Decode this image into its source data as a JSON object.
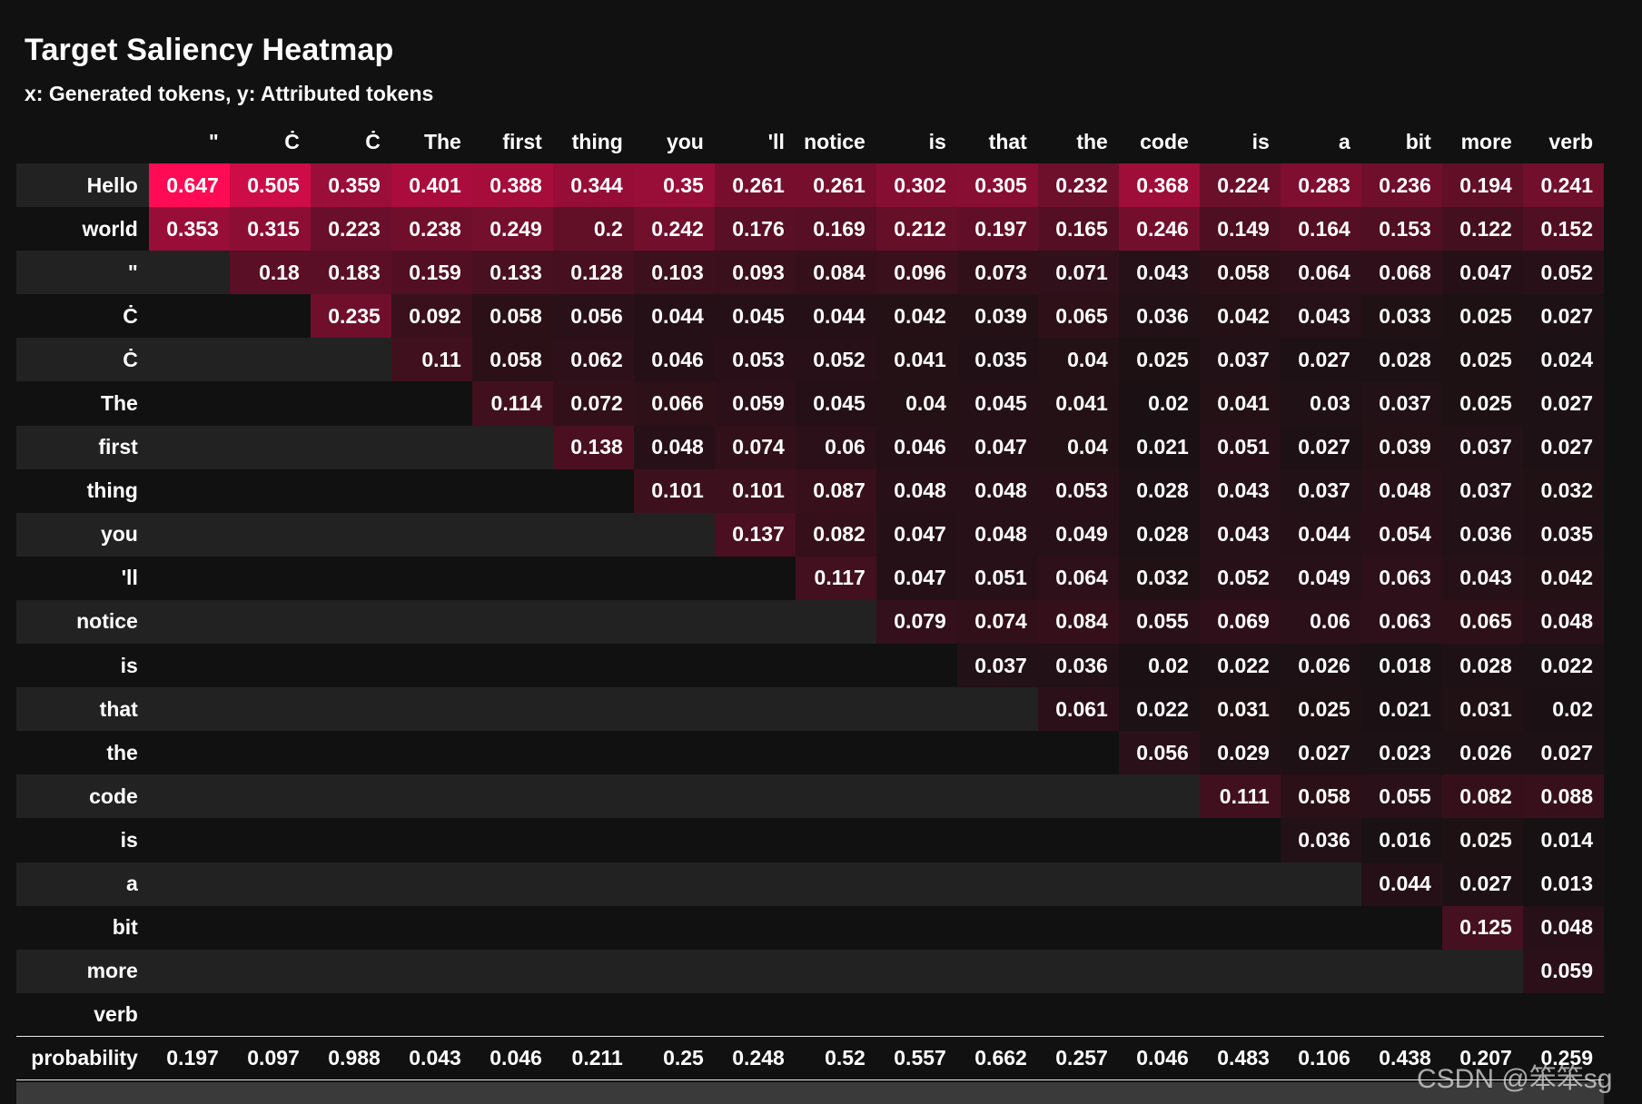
{
  "chart_data": {
    "type": "heatmap",
    "title": "Target Saliency Heatmap",
    "subtitle": "x: Generated tokens, y: Attributed tokens",
    "x_tokens": [
      "\"",
      "Ċ",
      "Ċ",
      "The",
      "first",
      "thing",
      "you",
      "'ll",
      "notice",
      "is",
      "that",
      "the",
      "code",
      "is",
      "a",
      "bit",
      "more",
      "verb"
    ],
    "y_tokens": [
      "Hello",
      "world",
      "\"",
      "Ċ",
      "Ċ",
      "The",
      "first",
      "thing",
      "you",
      "'ll",
      "notice",
      "is",
      "that",
      "the",
      "code",
      "is",
      "a",
      "bit",
      "more",
      "verb"
    ],
    "values": [
      [
        "0.647",
        "0.505",
        "0.359",
        "0.401",
        "0.388",
        "0.344",
        "0.35",
        "0.261",
        "0.261",
        "0.302",
        "0.305",
        "0.232",
        "0.368",
        "0.224",
        "0.283",
        "0.236",
        "0.194",
        "0.241"
      ],
      [
        "0.353",
        "0.315",
        "0.223",
        "0.238",
        "0.249",
        "0.2",
        "0.242",
        "0.176",
        "0.169",
        "0.212",
        "0.197",
        "0.165",
        "0.246",
        "0.149",
        "0.164",
        "0.153",
        "0.122",
        "0.152"
      ],
      [
        "",
        "0.18",
        "0.183",
        "0.159",
        "0.133",
        "0.128",
        "0.103",
        "0.093",
        "0.084",
        "0.096",
        "0.073",
        "0.071",
        "0.043",
        "0.058",
        "0.064",
        "0.068",
        "0.047",
        "0.052"
      ],
      [
        "",
        "",
        "0.235",
        "0.092",
        "0.058",
        "0.056",
        "0.044",
        "0.045",
        "0.044",
        "0.042",
        "0.039",
        "0.065",
        "0.036",
        "0.042",
        "0.043",
        "0.033",
        "0.025",
        "0.027"
      ],
      [
        "",
        "",
        "",
        "0.11",
        "0.058",
        "0.062",
        "0.046",
        "0.053",
        "0.052",
        "0.041",
        "0.035",
        "0.04",
        "0.025",
        "0.037",
        "0.027",
        "0.028",
        "0.025",
        "0.024"
      ],
      [
        "",
        "",
        "",
        "",
        "0.114",
        "0.072",
        "0.066",
        "0.059",
        "0.045",
        "0.04",
        "0.045",
        "0.041",
        "0.02",
        "0.041",
        "0.03",
        "0.037",
        "0.025",
        "0.027"
      ],
      [
        "",
        "",
        "",
        "",
        "",
        "0.138",
        "0.048",
        "0.074",
        "0.06",
        "0.046",
        "0.047",
        "0.04",
        "0.021",
        "0.051",
        "0.027",
        "0.039",
        "0.037",
        "0.027"
      ],
      [
        "",
        "",
        "",
        "",
        "",
        "",
        "0.101",
        "0.101",
        "0.087",
        "0.048",
        "0.048",
        "0.053",
        "0.028",
        "0.043",
        "0.037",
        "0.048",
        "0.037",
        "0.032"
      ],
      [
        "",
        "",
        "",
        "",
        "",
        "",
        "",
        "0.137",
        "0.082",
        "0.047",
        "0.048",
        "0.049",
        "0.028",
        "0.043",
        "0.044",
        "0.054",
        "0.036",
        "0.035"
      ],
      [
        "",
        "",
        "",
        "",
        "",
        "",
        "",
        "",
        "0.117",
        "0.047",
        "0.051",
        "0.064",
        "0.032",
        "0.052",
        "0.049",
        "0.063",
        "0.043",
        "0.042"
      ],
      [
        "",
        "",
        "",
        "",
        "",
        "",
        "",
        "",
        "",
        "0.079",
        "0.074",
        "0.084",
        "0.055",
        "0.069",
        "0.06",
        "0.063",
        "0.065",
        "0.048"
      ],
      [
        "",
        "",
        "",
        "",
        "",
        "",
        "",
        "",
        "",
        "",
        "0.037",
        "0.036",
        "0.02",
        "0.022",
        "0.026",
        "0.018",
        "0.028",
        "0.022"
      ],
      [
        "",
        "",
        "",
        "",
        "",
        "",
        "",
        "",
        "",
        "",
        "",
        "0.061",
        "0.022",
        "0.031",
        "0.025",
        "0.021",
        "0.031",
        "0.02"
      ],
      [
        "",
        "",
        "",
        "",
        "",
        "",
        "",
        "",
        "",
        "",
        "",
        "",
        "0.056",
        "0.029",
        "0.027",
        "0.023",
        "0.026",
        "0.027"
      ],
      [
        "",
        "",
        "",
        "",
        "",
        "",
        "",
        "",
        "",
        "",
        "",
        "",
        "",
        "0.111",
        "0.058",
        "0.055",
        "0.082",
        "0.088"
      ],
      [
        "",
        "",
        "",
        "",
        "",
        "",
        "",
        "",
        "",
        "",
        "",
        "",
        "",
        "",
        "0.036",
        "0.016",
        "0.025",
        "0.014"
      ],
      [
        "",
        "",
        "",
        "",
        "",
        "",
        "",
        "",
        "",
        "",
        "",
        "",
        "",
        "",
        "",
        "0.044",
        "0.027",
        "0.013"
      ],
      [
        "",
        "",
        "",
        "",
        "",
        "",
        "",
        "",
        "",
        "",
        "",
        "",
        "",
        "",
        "",
        "",
        "0.125",
        "0.048"
      ],
      [
        "",
        "",
        "",
        "",
        "",
        "",
        "",
        "",
        "",
        "",
        "",
        "",
        "",
        "",
        "",
        "",
        "",
        "0.059"
      ],
      [
        "",
        "",
        "",
        "",
        "",
        "",
        "",
        "",
        "",
        "",
        "",
        "",
        "",
        "",
        "",
        "",
        "",
        ""
      ]
    ],
    "probability_label": "probability",
    "probability": [
      "0.197",
      "0.097",
      "0.988",
      "0.043",
      "0.046",
      "0.211",
      "0.25",
      "0.248",
      "0.52",
      "0.557",
      "0.662",
      "0.257",
      "0.046",
      "0.483",
      "0.106",
      "0.438",
      "0.207",
      "0.259"
    ],
    "color_scale": {
      "low": "#111111",
      "high": "#ff0b55"
    }
  },
  "watermark": "CSDN @笨笨sg"
}
